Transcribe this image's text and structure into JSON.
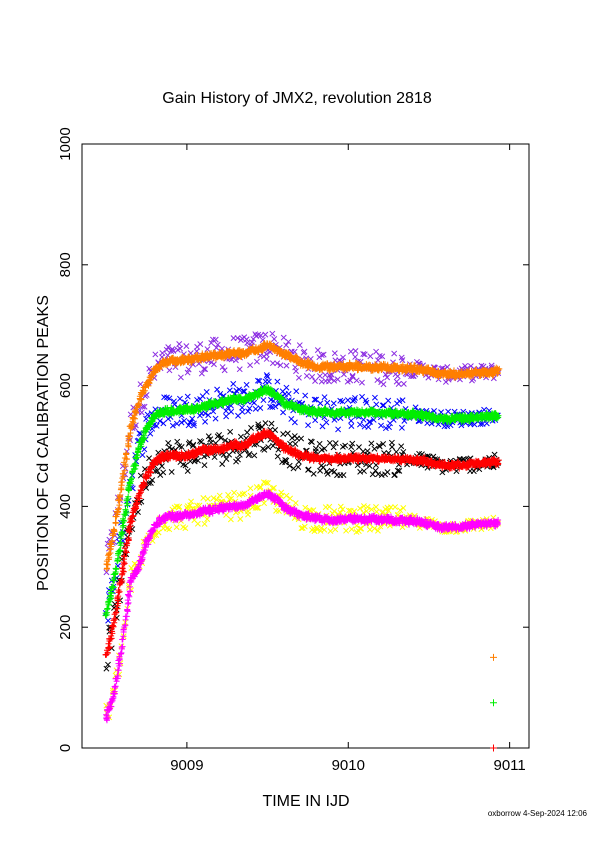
{
  "chart_data": {
    "type": "scatter",
    "title": "Gain History of JMX2, revolution 2818",
    "xlabel": "TIME IN IJD",
    "ylabel": "POSITION OF Cd CALIBRATION PEAKS",
    "xlim": [
      9008.35,
      9011.12
    ],
    "ylim": [
      0,
      1000
    ],
    "x_ticks": [
      "9009",
      "9010",
      "9011"
    ],
    "y_ticks": [
      "0",
      "200",
      "400",
      "600",
      "800",
      "1000"
    ],
    "grid": false,
    "legend": "none",
    "footer": "oxborrow  4-Sep-2024 12:06",
    "profile_x": [
      9008.5,
      9008.55,
      9008.6,
      9008.65,
      9008.7,
      9008.75,
      9008.8,
      9008.85,
      9008.9,
      9009.0,
      9009.05,
      9009.1,
      9009.2,
      9009.3,
      9009.35,
      9009.4,
      9009.45,
      9009.5,
      9009.55,
      9009.6,
      9009.7,
      9009.8,
      9009.9,
      9010.0,
      9010.2,
      9010.4,
      9010.5,
      9010.55,
      9010.6,
      9010.7,
      9010.8,
      9010.9,
      9010.93
    ],
    "series": [
      {
        "name": "",
        "color": "#ff7f00",
        "marker": "+",
        "scatter_color": "#8a2be2",
        "scatter_marker": "x",
        "scatter_spread": 28,
        "profile_y": [
          300,
          360,
          440,
          530,
          570,
          600,
          625,
          638,
          640,
          642,
          645,
          648,
          650,
          655,
          652,
          658,
          662,
          668,
          660,
          652,
          640,
          632,
          630,
          632,
          630,
          628,
          625,
          620,
          618,
          620,
          621,
          623,
          624
        ]
      },
      {
        "name": "",
        "color": "#00ee00",
        "marker": "+",
        "scatter_color": "#0000ff",
        "scatter_marker": "x",
        "scatter_spread": 28,
        "profile_y": [
          222,
          280,
          360,
          440,
          495,
          530,
          550,
          556,
          558,
          560,
          562,
          566,
          572,
          578,
          575,
          582,
          588,
          592,
          585,
          572,
          562,
          557,
          555,
          556,
          555,
          553,
          550,
          546,
          545,
          546,
          548,
          550,
          551
        ]
      },
      {
        "name": "",
        "color": "#ff0000",
        "marker": "+",
        "scatter_color": "#000000",
        "scatter_marker": "x",
        "scatter_spread": 28,
        "profile_y": [
          150,
          210,
          290,
          375,
          415,
          450,
          475,
          482,
          484,
          485,
          488,
          492,
          496,
          502,
          500,
          510,
          516,
          520,
          512,
          498,
          485,
          480,
          479,
          480,
          479,
          477,
          474,
          469,
          467,
          469,
          471,
          473,
          474
        ]
      },
      {
        "name": "",
        "color": "#ff00ff",
        "marker": "+",
        "scatter_color": "#ffff00",
        "scatter_marker": "x",
        "scatter_spread": 22,
        "profile_y": [
          50,
          90,
          170,
          275,
          300,
          340,
          368,
          380,
          383,
          385,
          388,
          392,
          396,
          402,
          400,
          410,
          416,
          420,
          413,
          400,
          385,
          380,
          378,
          380,
          378,
          376,
          372,
          367,
          365,
          367,
          370,
          372,
          373
        ]
      }
    ],
    "outlier_points": [
      {
        "x": 9010.9,
        "y": 150,
        "color": "#ff7f00"
      },
      {
        "x": 9010.9,
        "y": 75,
        "color": "#00ee00"
      },
      {
        "x": 9010.9,
        "y": 0,
        "color": "#ff0000"
      }
    ]
  }
}
